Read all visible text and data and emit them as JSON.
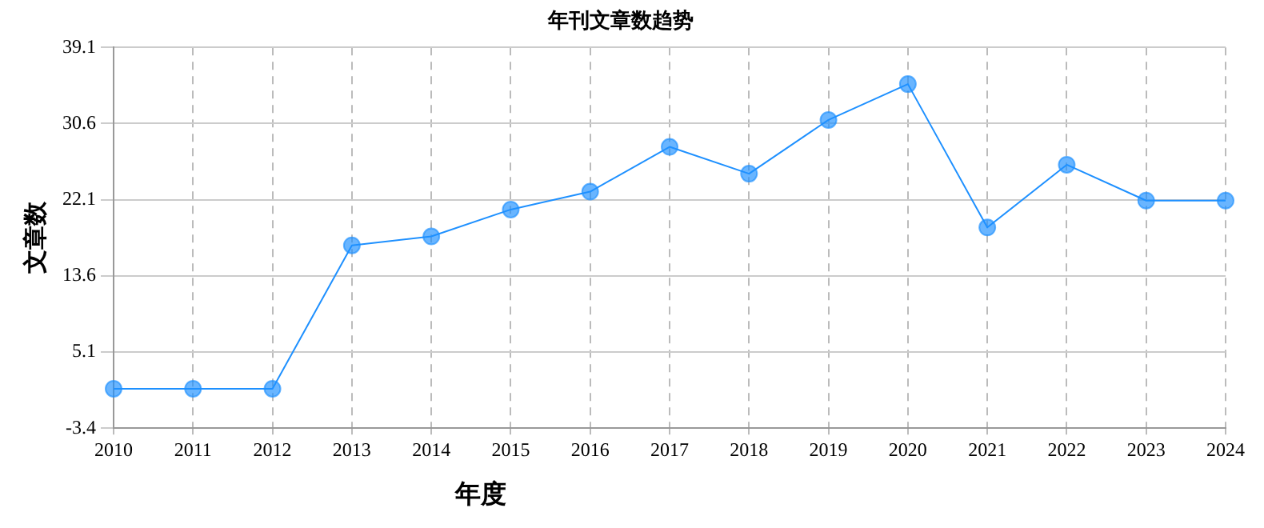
{
  "chart_data": {
    "type": "line",
    "title": "年刊文章数趋势",
    "xlabel": "年度",
    "ylabel": "文章数",
    "categories": [
      "2010",
      "2011",
      "2012",
      "2013",
      "2014",
      "2015",
      "2016",
      "2017",
      "2018",
      "2019",
      "2020",
      "2021",
      "2022",
      "2023",
      "2024"
    ],
    "series": [
      {
        "color": "#1e90ff",
        "values": [
          1,
          1,
          1,
          17,
          18,
          21,
          23,
          28,
          25,
          31,
          35,
          19,
          26,
          22,
          22
        ]
      }
    ],
    "ylim": [
      -3.4,
      39.1
    ],
    "yticks": [
      -3.4,
      5.1,
      13.6,
      22.1,
      30.6,
      39.1
    ],
    "grid": true,
    "marker": "circle",
    "line_style": "solid"
  }
}
